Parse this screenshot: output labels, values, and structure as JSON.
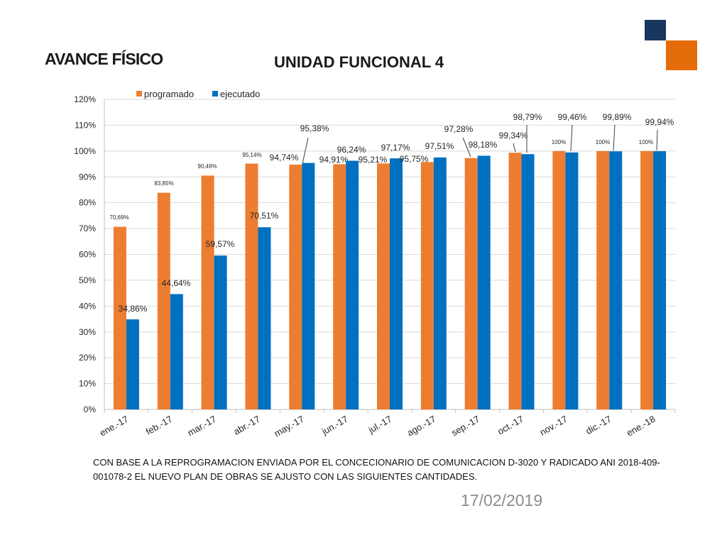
{
  "slide": {
    "title": "AVANCE FÍSICO",
    "chart_title": "UNIDAD FUNCIONAL 4",
    "note": "CON BASE A LA REPROGRAMACION ENVIADA POR EL CONCECIONARIO DE COMUNICACION D-3020 Y RADICADO ANI  2018-409-001078-2 EL NUEVO PLAN  DE OBRAS SE AJUSTO CON LAS SIGUIENTES CANTIDADES.",
    "date": "17/02/2019"
  },
  "colors": {
    "programado": "#ED7D31",
    "ejecutado": "#0070C0",
    "accent_dark": "#17375E",
    "accent_orange": "#E46C0A",
    "grid": "#D9D9D9",
    "axis_text": "#262626"
  },
  "chart_data": {
    "type": "bar",
    "title": "UNIDAD FUNCIONAL 4",
    "xlabel": "",
    "ylabel": "",
    "ylim": [
      0,
      120
    ],
    "yticks": [
      0,
      10,
      20,
      30,
      40,
      50,
      60,
      70,
      80,
      90,
      100,
      110,
      120
    ],
    "ytick_labels": [
      "0%",
      "10%",
      "20%",
      "30%",
      "40%",
      "50%",
      "60%",
      "70%",
      "80%",
      "90%",
      "100%",
      "110%",
      "120%"
    ],
    "grid": true,
    "legend_position": "top-left",
    "categories": [
      "ene.-17",
      "feb.-17",
      "mar.-17",
      "abr.-17",
      "may.-17",
      "jun.-17",
      "jul.-17",
      "ago.-17",
      "sep.-17",
      "oct.-17",
      "nov.-17",
      "dic.-17",
      "ene.-18"
    ],
    "series": [
      {
        "name": "programado",
        "values": [
          70.69,
          83.85,
          90.49,
          95.14,
          94.74,
          94.91,
          95.21,
          95.75,
          97.28,
          99.34,
          100,
          100,
          100
        ],
        "labels": [
          "70,69%",
          "83,85%",
          "90,49%",
          "95,14%",
          "94,74%",
          "94,91%",
          "95,21%",
          "95,75%",
          "97,28%",
          "99,34%",
          "100%",
          "100%",
          "100%"
        ]
      },
      {
        "name": "ejecutado",
        "values": [
          34.86,
          44.64,
          59.57,
          70.51,
          95.38,
          96.24,
          97.17,
          97.51,
          98.18,
          98.79,
          99.46,
          99.89,
          99.94
        ],
        "labels": [
          "34,86%",
          "44,64%",
          "59,57%",
          "70,51%",
          "95,38%",
          "96,24%",
          "97,17%",
          "97,51%",
          "98,18%",
          "98,79%",
          "99,46%",
          "99,89%",
          "99,94%"
        ]
      }
    ]
  }
}
